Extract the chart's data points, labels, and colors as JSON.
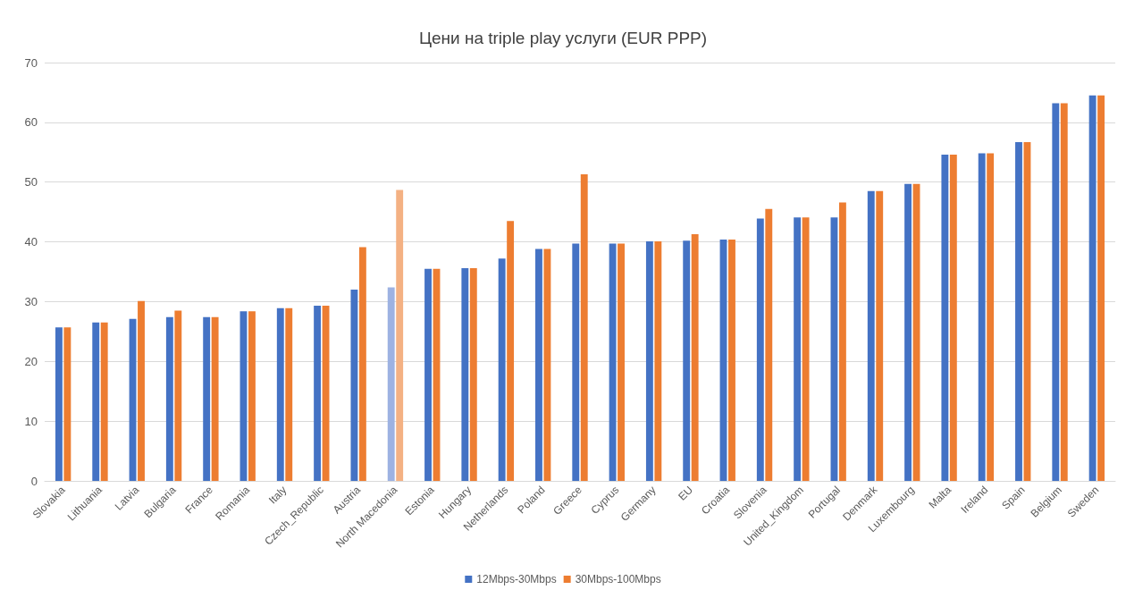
{
  "chart_data": {
    "type": "bar",
    "title": "Цени на triple play услуги (EUR PPP)",
    "categories": [
      "Slovakia",
      "Lithuania",
      "Latvia",
      "Bulgaria",
      "France",
      "Romania",
      "Italy",
      "Czech_Republic",
      "Austria",
      "North Macedonia",
      "Estonia",
      "Hungary",
      "Netherlands",
      "Poland",
      "Greece",
      "Cyprus",
      "Germany",
      "EU",
      "Croatia",
      "Slovenia",
      "United_Kingdom",
      "Portugal",
      "Denmark",
      "Luxembourg",
      "Malta",
      "Ireland",
      "Spain",
      "Belgium",
      "Sweden"
    ],
    "series": [
      {
        "name": "12Mbps-30Mbps",
        "color": "#4472c4",
        "colors": [
          "#4472c4",
          "#4472c4",
          "#4472c4",
          "#4472c4",
          "#4472c4",
          "#4472c4",
          "#4472c4",
          "#4472c4",
          "#4472c4",
          "#9db2e2",
          "#4472c4",
          "#4472c4",
          "#4472c4",
          "#4472c4",
          "#4472c4",
          "#4472c4",
          "#4472c4",
          "#4472c4",
          "#4472c4",
          "#4472c4",
          "#4472c4",
          "#4472c4",
          "#4472c4",
          "#4472c4",
          "#4472c4",
          "#4472c4",
          "#4472c4",
          "#4472c4",
          "#4472c4"
        ],
        "values": [
          25.7,
          26.5,
          27.1,
          27.4,
          27.4,
          28.4,
          28.9,
          29.3,
          32.0,
          32.4,
          35.5,
          35.6,
          37.2,
          38.8,
          39.7,
          39.7,
          40.1,
          40.2,
          40.4,
          43.9,
          44.1,
          44.1,
          48.5,
          49.7,
          54.6,
          54.8,
          56.7,
          63.2,
          64.5
        ]
      },
      {
        "name": "30Mbps-100Mbps",
        "color": "#ed7d31",
        "colors": [
          "#ed7d31",
          "#ed7d31",
          "#ed7d31",
          "#ed7d31",
          "#ed7d31",
          "#ed7d31",
          "#ed7d31",
          "#ed7d31",
          "#ed7d31",
          "#f4b183",
          "#ed7d31",
          "#ed7d31",
          "#ed7d31",
          "#ed7d31",
          "#ed7d31",
          "#ed7d31",
          "#ed7d31",
          "#ed7d31",
          "#ed7d31",
          "#ed7d31",
          "#ed7d31",
          "#ed7d31",
          "#ed7d31",
          "#ed7d31",
          "#ed7d31",
          "#ed7d31",
          "#ed7d31",
          "#ed7d31",
          "#ed7d31"
        ],
        "values": [
          25.7,
          26.5,
          30.1,
          28.5,
          27.4,
          28.4,
          28.9,
          29.3,
          39.1,
          48.7,
          35.5,
          35.6,
          43.5,
          38.8,
          51.3,
          39.7,
          40.1,
          41.3,
          40.4,
          45.5,
          44.1,
          46.6,
          48.5,
          49.7,
          54.6,
          54.8,
          56.7,
          63.2,
          64.5
        ]
      }
    ],
    "ylim": [
      0,
      70
    ],
    "yticks": [
      0,
      10,
      20,
      30,
      40,
      50,
      60,
      70
    ],
    "grid": "y",
    "legend": "bottom"
  }
}
